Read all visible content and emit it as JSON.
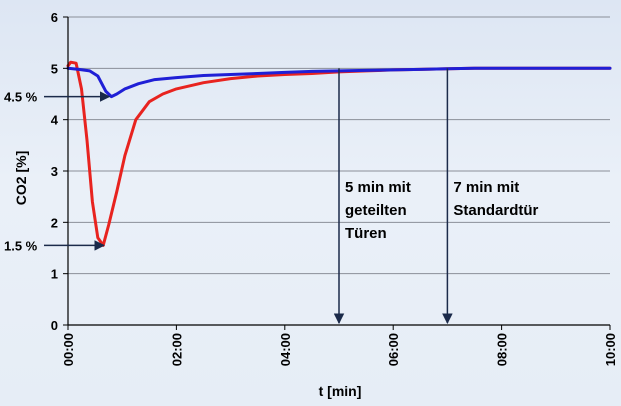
{
  "chart_data": {
    "type": "line",
    "xlabel": "t [min]",
    "ylabel": "CO2 [%]",
    "xlim": [
      0,
      10
    ],
    "ylim": [
      0,
      6
    ],
    "x_tick_labels": [
      "00:00",
      "02:00",
      "04:00",
      "06:00",
      "08:00",
      "10:00"
    ],
    "x_ticks": [
      0,
      2,
      4,
      6,
      8,
      10
    ],
    "y_tick_labels": [
      "0",
      "1",
      "2",
      "3",
      "4",
      "5",
      "6"
    ],
    "y_ticks": [
      0,
      1,
      2,
      3,
      4,
      5,
      6
    ],
    "grid": "horizontal",
    "series": [
      {
        "color": "#e8231f",
        "x": [
          0,
          0.05,
          0.15,
          0.25,
          0.35,
          0.45,
          0.55,
          0.65,
          0.75,
          0.9,
          1.05,
          1.25,
          1.5,
          1.75,
          2.0,
          2.5,
          3.0,
          3.5,
          4.0,
          4.5,
          5.0,
          5.5,
          6.0,
          6.5,
          7.0,
          7.5,
          8.0,
          8.5,
          9.0,
          9.5,
          10.0
        ],
        "y": [
          5.05,
          5.12,
          5.1,
          4.6,
          3.6,
          2.4,
          1.7,
          1.55,
          1.95,
          2.6,
          3.3,
          4.0,
          4.35,
          4.5,
          4.6,
          4.72,
          4.8,
          4.85,
          4.88,
          4.9,
          4.93,
          4.95,
          4.97,
          4.98,
          4.99,
          5.0,
          5.0,
          5.0,
          5.0,
          5.0,
          5.0
        ]
      },
      {
        "color": "#1f1fd6",
        "x": [
          0,
          0.2,
          0.4,
          0.55,
          0.7,
          0.8,
          0.9,
          1.05,
          1.3,
          1.6,
          2.0,
          2.5,
          3.0,
          3.5,
          4.0,
          4.5,
          5.0,
          5.5,
          6.0,
          6.5,
          7.0,
          7.5,
          8.0,
          8.5,
          9.0,
          9.5,
          10.0
        ],
        "y": [
          5.0,
          4.98,
          4.95,
          4.85,
          4.55,
          4.45,
          4.5,
          4.6,
          4.7,
          4.78,
          4.82,
          4.86,
          4.88,
          4.9,
          4.92,
          4.94,
          4.95,
          4.96,
          4.97,
          4.98,
          4.99,
          5.0,
          5.0,
          5.0,
          5.0,
          5.0,
          5.0
        ]
      }
    ],
    "callouts": [
      {
        "label": "4.5 %",
        "x": 0.8,
        "y": 4.45
      },
      {
        "label": "1.5 %",
        "x": 0.7,
        "y": 1.55
      }
    ],
    "markers": [
      {
        "x": 5.0,
        "lines": [
          "5 min mit",
          "geteilten",
          "Türen"
        ]
      },
      {
        "x": 7.0,
        "lines": [
          "7 min mit",
          "Standardtür"
        ]
      }
    ]
  }
}
